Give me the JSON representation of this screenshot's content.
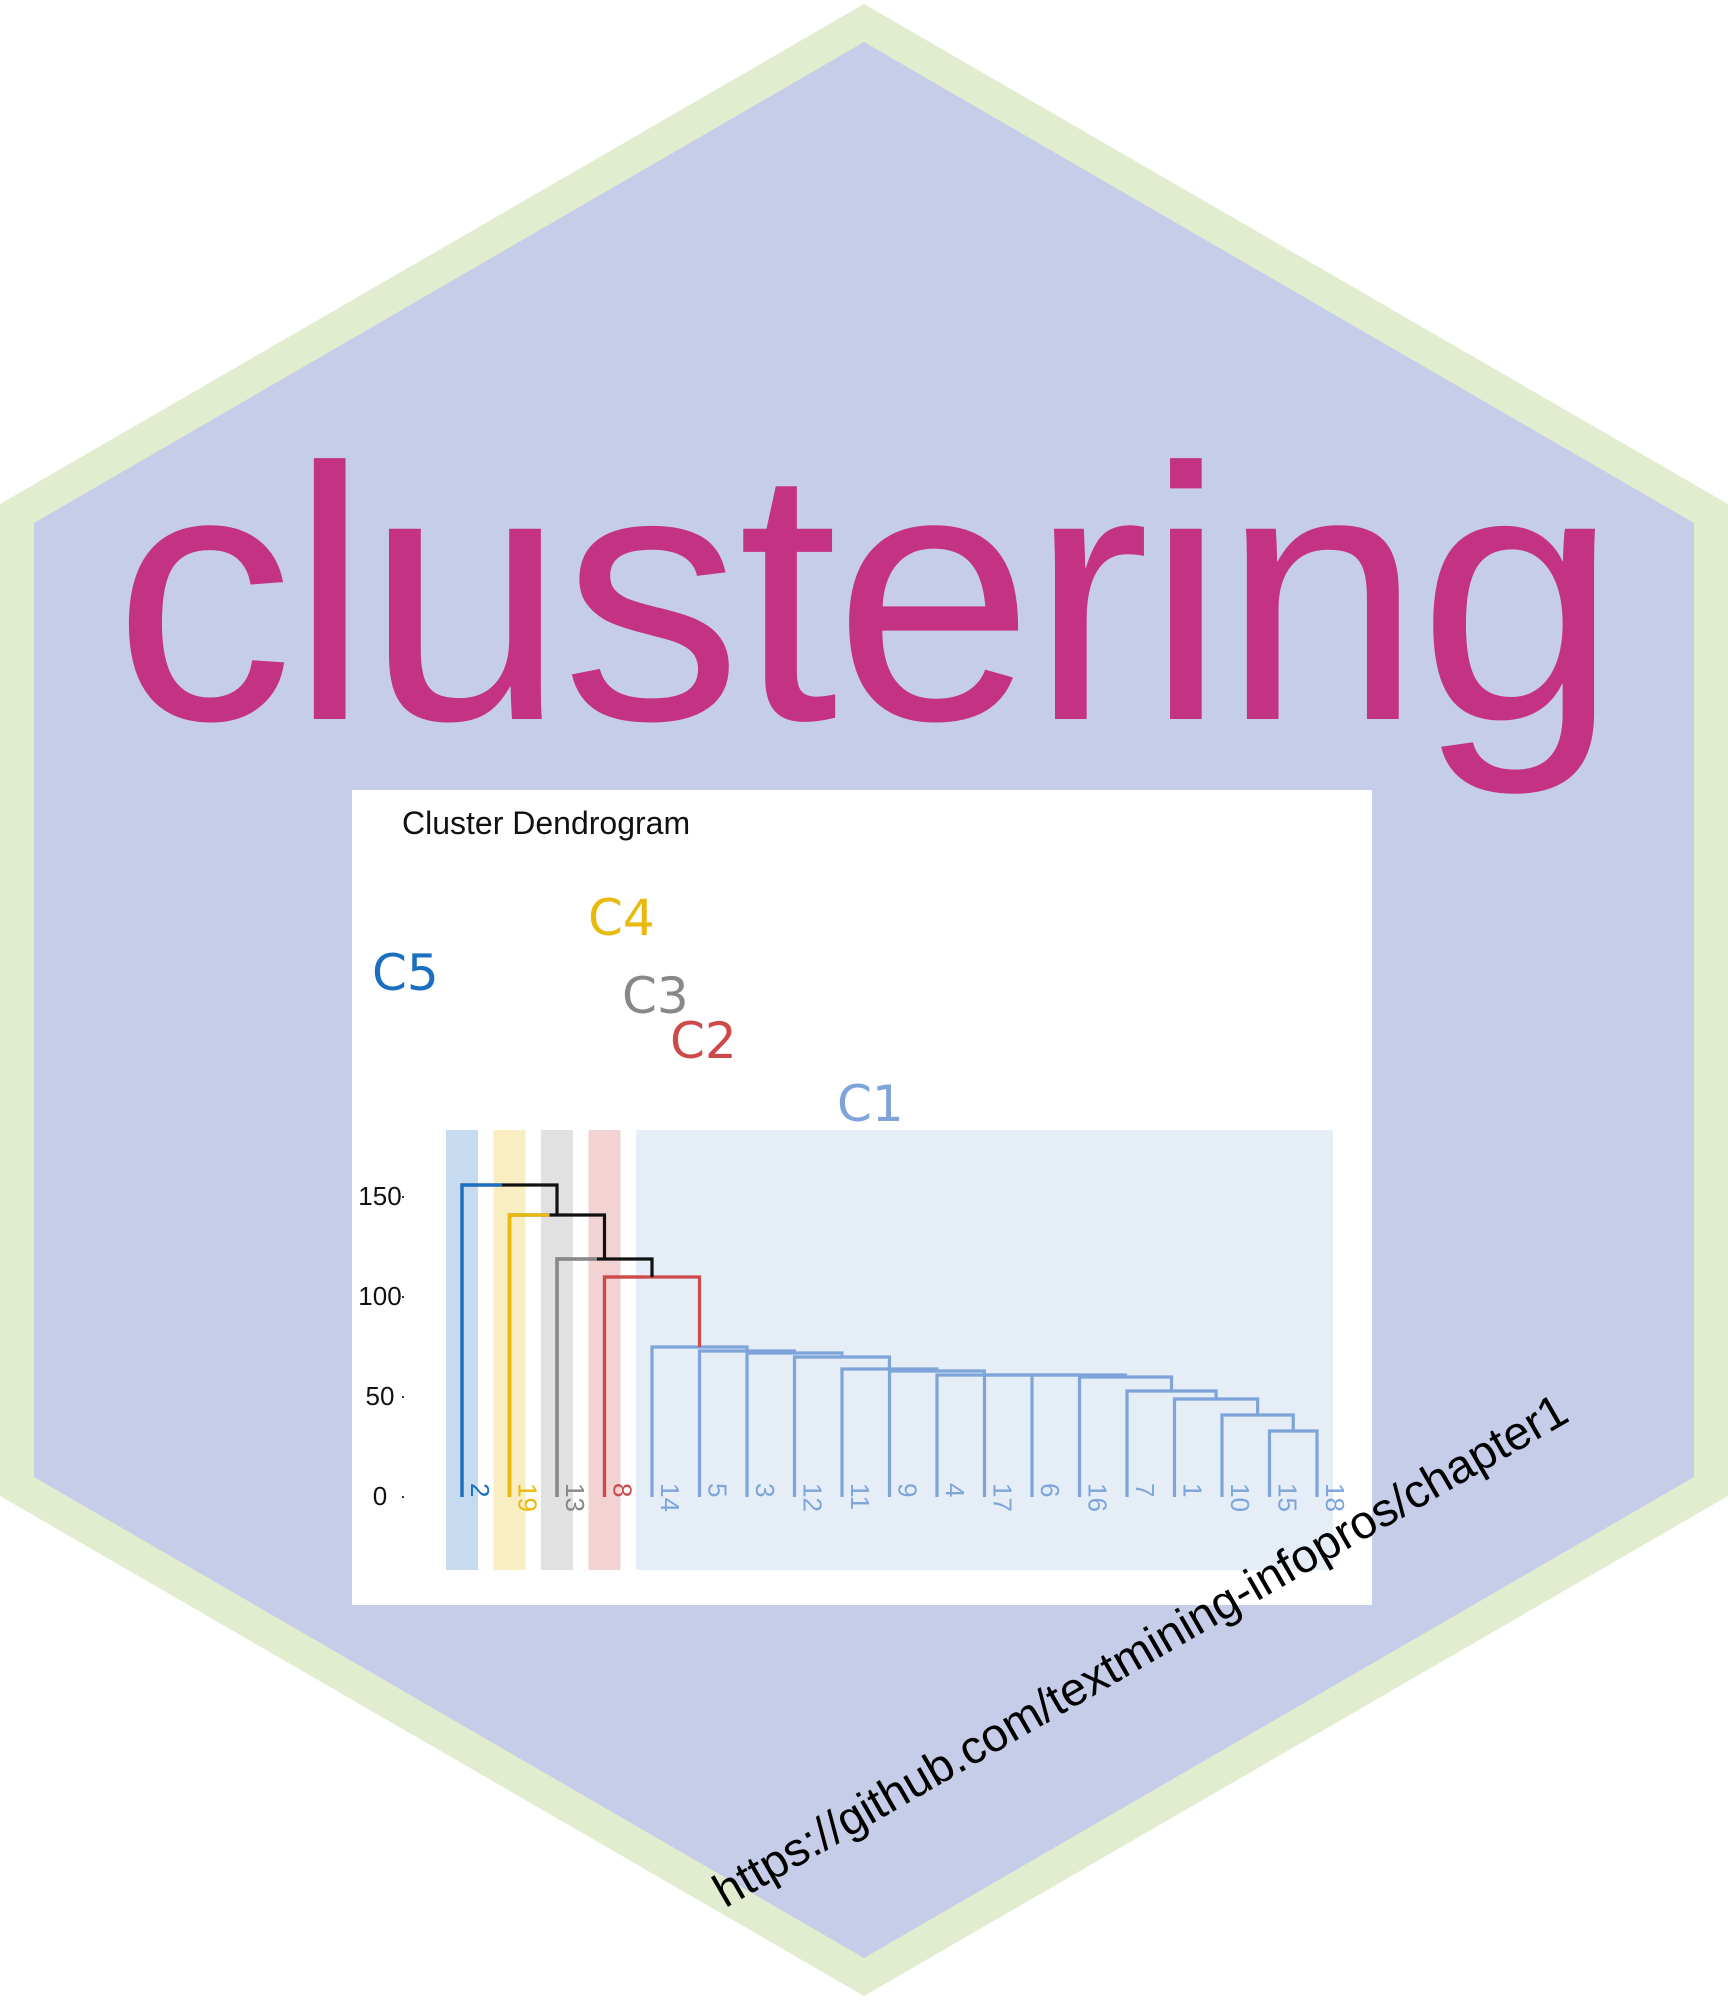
{
  "sticker": {
    "title": "clustering",
    "url": "https://github.com/textmining-infopros/chapter1",
    "colors": {
      "border": "#e2edcf",
      "fill": "#c6cde8",
      "title": "#c43284",
      "url": "#000000"
    }
  },
  "chart_data": {
    "type": "dendrogram",
    "title": "Cluster Dendrogram",
    "xlabel": "",
    "ylabel": "",
    "ylim": [
      0,
      160
    ],
    "yticks": [
      0,
      50,
      100,
      150
    ],
    "grid": false,
    "leaves": [
      "2",
      "19",
      "13",
      "8",
      "14",
      "5",
      "3",
      "12",
      "11",
      "9",
      "4",
      "17",
      "6",
      "16",
      "7",
      "1",
      "10",
      "15",
      "18"
    ],
    "clusters": [
      {
        "name": "C5",
        "leaves": [
          "2"
        ],
        "color": "#1a6fc0"
      },
      {
        "name": "C4",
        "leaves": [
          "19"
        ],
        "color": "#e9b90d"
      },
      {
        "name": "C3",
        "leaves": [
          "13"
        ],
        "color": "#888888"
      },
      {
        "name": "C2",
        "leaves": [
          "8"
        ],
        "color": "#cc4a4a"
      },
      {
        "name": "C1",
        "leaves": [
          "14",
          "5",
          "3",
          "12",
          "11",
          "9",
          "4",
          "17",
          "6",
          "16",
          "7",
          "1",
          "10",
          "15",
          "18"
        ],
        "color": "#7ea4d9"
      }
    ],
    "merges": [
      {
        "left": "15",
        "right": "18",
        "height": 33
      },
      {
        "left": "10",
        "right": "15+18",
        "height": 41
      },
      {
        "left": "1",
        "right": "10+15+18",
        "height": 49
      },
      {
        "left": "7",
        "right": "1+10+15+18",
        "height": 53
      },
      {
        "left": "16",
        "right": "7+1+10+15+18",
        "height": 60
      },
      {
        "left": "6",
        "right": "16+7+1+10+15+18",
        "height": 61
      },
      {
        "left": "17",
        "right": "6+16+7+1+10+15+18",
        "height": 61
      },
      {
        "left": "4",
        "right": "17+6+16+7+1+10+15+18",
        "height": 61
      },
      {
        "left": "9",
        "right": "4+17+6+16+7+1+10+15+18",
        "height": 63
      },
      {
        "left": "11",
        "right": "9+4+17+6+16+7+1+10+15+18",
        "height": 64
      },
      {
        "left": "12",
        "right": "11+9+4+17+6+16+7+1+10+15+18",
        "height": 70
      },
      {
        "left": "3",
        "right": "12+11+9+4+17+6+16+7+1+10+15+18",
        "height": 72
      },
      {
        "left": "5",
        "right": "3+12+11+9+4+17+6+16+7+1+10+15+18",
        "height": 73
      },
      {
        "left": "14",
        "right": "5+3+12+11+9+4+17+6+16+7+1+10+15+18",
        "height": 75
      },
      {
        "left": "C1",
        "right": "",
        "height": 110,
        "note": ""
      },
      {
        "left": "8",
        "right": "C1",
        "height": 110
      },
      {
        "left": "13",
        "right": "C2+C1",
        "height": 119
      },
      {
        "left": "19",
        "right": "C3+C2+C1",
        "height": 141
      },
      {
        "left": "2",
        "right": "C4+C3+C2+C1",
        "height": 156
      }
    ]
  }
}
